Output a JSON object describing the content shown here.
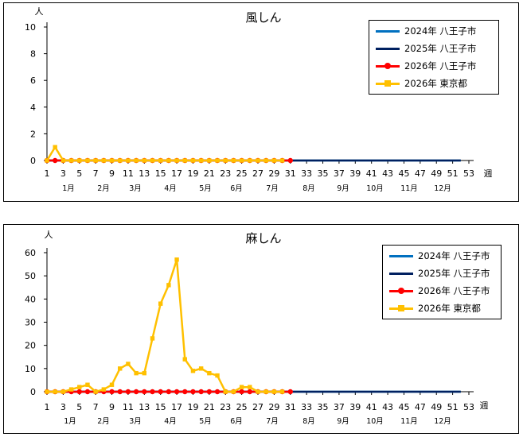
{
  "chart_data": [
    {
      "type": "line",
      "title": "風しん",
      "ylabel": "人",
      "xlabel": "週",
      "ylim": [
        0,
        10
      ],
      "y_ticks": [
        "0",
        "2",
        "4",
        "6",
        "8",
        "10"
      ],
      "x_ticks": [
        "1",
        "3",
        "5",
        "7",
        "9",
        "11",
        "13",
        "15",
        "17",
        "19",
        "21",
        "23",
        "25",
        "27",
        "29",
        "31",
        "33",
        "35",
        "37",
        "39",
        "41",
        "43",
        "45",
        "47",
        "49",
        "51",
        "53"
      ],
      "months": [
        "1月",
        "2月",
        "3月",
        "4月",
        "5月",
        "6月",
        "7月",
        "8月",
        "9月",
        "10月",
        "11月",
        "12月"
      ],
      "grid": false,
      "legend_position": "top-right",
      "series": [
        {
          "name": "2024年  八王子市",
          "color": "#0070C0",
          "marker": "none",
          "start_week": 1,
          "values": [
            0,
            0,
            0,
            0,
            0,
            0,
            0,
            0,
            0,
            0,
            0,
            0,
            0,
            0,
            0,
            0,
            0,
            0,
            0,
            0,
            0,
            0,
            0,
            0,
            0,
            0,
            0,
            0,
            0,
            0,
            0,
            0,
            0,
            0,
            0,
            0,
            0,
            0,
            0,
            0,
            0,
            0,
            0,
            0,
            0,
            0,
            0,
            0,
            0,
            0,
            0,
            0
          ]
        },
        {
          "name": "2025年  八王子市",
          "color": "#002060",
          "marker": "none",
          "start_week": 1,
          "values": [
            0,
            0,
            0,
            0,
            0,
            0,
            0,
            0,
            0,
            0,
            0,
            0,
            0,
            0,
            0,
            0,
            0,
            0,
            0,
            0,
            0,
            0,
            0,
            0,
            0,
            0,
            0,
            0,
            0,
            0,
            0,
            0,
            0,
            0,
            0,
            0,
            0,
            0,
            0,
            0,
            0,
            0,
            0,
            0,
            0,
            0,
            0,
            0,
            0,
            0,
            0,
            0
          ]
        },
        {
          "name": "2026年  八王子市",
          "color": "#FF0000",
          "marker": "circle",
          "start_week": 1,
          "values": [
            0,
            0,
            0,
            0,
            0,
            0,
            0,
            0,
            0,
            0,
            0,
            0,
            0,
            0,
            0,
            0,
            0,
            0,
            0,
            0,
            0,
            0,
            0,
            0,
            0,
            0,
            0,
            0,
            0,
            0,
            0
          ]
        },
        {
          "name": "2026年  東京都",
          "color": "#FFC000",
          "marker": "square",
          "start_week": 1,
          "values": [
            0,
            1,
            0,
            0,
            0,
            0,
            0,
            0,
            0,
            0,
            0,
            0,
            0,
            0,
            0,
            0,
            0,
            0,
            0,
            0,
            0,
            0,
            0,
            0,
            0,
            0,
            0,
            0,
            0,
            0
          ]
        }
      ]
    },
    {
      "type": "line",
      "title": "麻しん",
      "ylabel": "人",
      "xlabel": "週",
      "ylim": [
        0,
        60
      ],
      "y_ticks": [
        "0",
        "10",
        "20",
        "30",
        "40",
        "50",
        "60"
      ],
      "x_ticks": [
        "1",
        "3",
        "5",
        "7",
        "9",
        "11",
        "13",
        "15",
        "17",
        "19",
        "21",
        "23",
        "25",
        "27",
        "29",
        "31",
        "33",
        "35",
        "37",
        "39",
        "41",
        "43",
        "45",
        "47",
        "49",
        "51",
        "53"
      ],
      "months": [
        "1月",
        "2月",
        "3月",
        "4月",
        "5月",
        "6月",
        "7月",
        "8月",
        "9月",
        "10月",
        "11月",
        "12月"
      ],
      "grid": false,
      "legend_position": "top-right",
      "series": [
        {
          "name": "2024年  八王子市",
          "color": "#0070C0",
          "marker": "none",
          "start_week": 1,
          "values": [
            0,
            0,
            0,
            0,
            0,
            0,
            0,
            0,
            0,
            0,
            0,
            0,
            0,
            0,
            0,
            0,
            0,
            0,
            0,
            0,
            0,
            0,
            0,
            0,
            0,
            0,
            0,
            0,
            0,
            0,
            0,
            0,
            0,
            0,
            0,
            0,
            0,
            0,
            0,
            0,
            0,
            0,
            0,
            0,
            0,
            0,
            0,
            0,
            0,
            0,
            0,
            0
          ]
        },
        {
          "name": "2025年  八王子市",
          "color": "#002060",
          "marker": "none",
          "start_week": 1,
          "values": [
            0,
            0,
            0,
            0,
            0,
            0,
            0,
            0,
            0,
            0,
            0,
            0,
            0,
            0,
            0,
            0,
            0,
            0,
            0,
            0,
            0,
            0,
            0,
            0,
            0,
            0,
            0,
            0,
            0,
            0,
            0,
            0,
            0,
            0,
            0,
            0,
            0,
            0,
            0,
            0,
            0,
            0,
            0,
            0,
            0,
            0,
            0,
            0,
            0,
            0,
            0,
            0
          ]
        },
        {
          "name": "2026年  八王子市",
          "color": "#FF0000",
          "marker": "circle",
          "start_week": 1,
          "values": [
            0,
            0,
            0,
            0,
            0,
            0,
            0,
            0,
            0,
            0,
            0,
            0,
            0,
            0,
            0,
            0,
            0,
            0,
            0,
            0,
            0,
            0,
            0,
            0,
            0,
            0,
            0,
            0,
            0,
            0,
            0
          ]
        },
        {
          "name": "2026年  東京都",
          "color": "#FFC000",
          "marker": "square",
          "start_week": 1,
          "values": [
            0,
            0,
            0,
            1,
            2,
            3,
            0,
            1,
            3,
            10,
            12,
            8,
            8,
            23,
            38,
            46,
            57,
            14,
            9,
            10,
            8,
            7,
            0,
            0,
            2,
            2,
            0,
            0,
            0,
            0
          ]
        }
      ]
    }
  ]
}
